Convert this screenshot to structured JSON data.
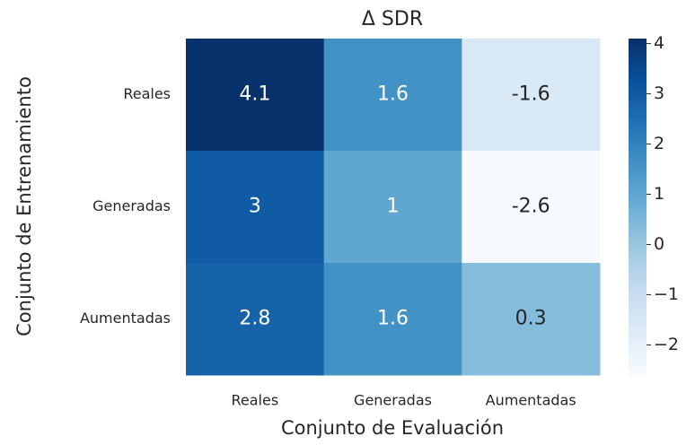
{
  "chart_data": {
    "type": "heatmap",
    "title": "Δ SDR",
    "x_label": "Conjunto de Evaluación",
    "y_label": "Conjunto de Entrenamiento",
    "x_categories": [
      "Reales",
      "Generadas",
      "Aumentadas"
    ],
    "y_categories": [
      "Reales",
      "Generadas",
      "Aumentadas"
    ],
    "values": [
      [
        4.1,
        1.6,
        -1.6
      ],
      [
        3,
        1,
        -2.6
      ],
      [
        2.8,
        1.6,
        0.3
      ]
    ],
    "colormap": "Blues",
    "zlim": [
      -2.6,
      4.1
    ],
    "zticks": [
      {
        "value": -2,
        "label": "−2"
      },
      {
        "value": -1,
        "label": "−1"
      },
      0,
      1,
      2,
      3,
      4
    ]
  }
}
